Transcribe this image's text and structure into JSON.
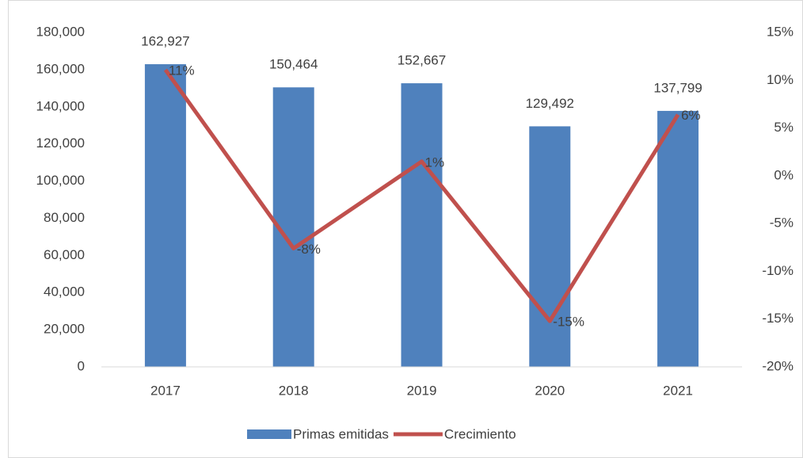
{
  "chart_data": {
    "type": "bar_line",
    "categories": [
      "2017",
      "2018",
      "2019",
      "2020",
      "2021"
    ],
    "series": [
      {
        "name": "Primas emitidas",
        "type": "bar",
        "color": "#4f81bd",
        "values": [
          162927,
          150464,
          152667,
          129492,
          137799
        ],
        "value_labels": [
          "162,927",
          "150,464",
          "152,667",
          "129,492",
          "137,799"
        ]
      },
      {
        "name": "Crecimiento",
        "type": "line",
        "axis": "y2",
        "color": "#c0504d",
        "values": [
          11.1,
          -7.6,
          1.5,
          -15.2,
          6.4
        ],
        "value_labels": [
          "11%",
          "-8%",
          "1%",
          "-15%",
          "6%"
        ]
      }
    ],
    "ylim": [
      0,
      180000
    ],
    "yticks": [
      0,
      {
        "value": 20000,
        "label": "20,000"
      },
      {
        "value": 40000,
        "label": "40,000"
      },
      {
        "value": 60000,
        "label": "60,000"
      },
      {
        "value": 80000,
        "label": "80,000"
      },
      {
        "value": 100000,
        "label": "100,000"
      },
      {
        "value": 120000,
        "label": "120,000"
      },
      {
        "value": 140000,
        "label": "140,000"
      },
      {
        "value": 160000,
        "label": "160,000"
      },
      {
        "value": 180000,
        "label": "180,000"
      }
    ],
    "y2lim": [
      -20,
      15
    ],
    "y2ticks": [
      {
        "value": -20,
        "label": "-20%"
      },
      {
        "value": -15,
        "label": "-15%"
      },
      {
        "value": -10,
        "label": "-10%"
      },
      {
        "value": -5,
        "label": "-5%"
      },
      {
        "value": 0,
        "label": "0%"
      },
      {
        "value": 5,
        "label": "5%"
      },
      {
        "value": 10,
        "label": "10%"
      },
      {
        "value": 15,
        "label": "15%"
      }
    ],
    "legend": "bottom"
  }
}
